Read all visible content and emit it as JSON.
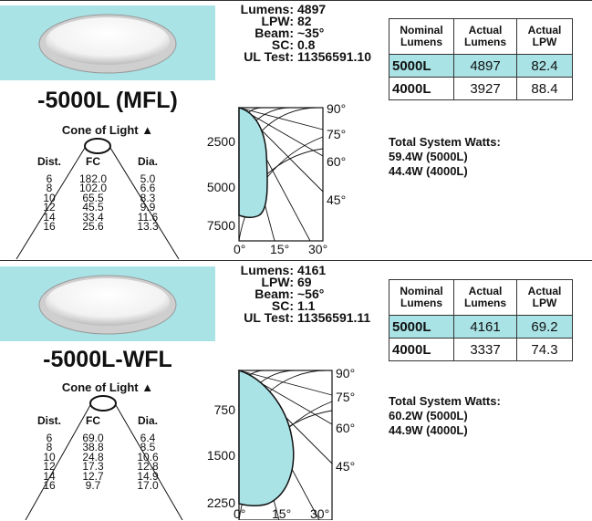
{
  "panels": [
    {
      "model": "-5000L (MFL)",
      "cone_title": "Cone of Light",
      "cone_headers": [
        "Dist.",
        "FC",
        "Dia."
      ],
      "cone_rows": [
        [
          "6",
          "182.0",
          "5.0"
        ],
        [
          "8",
          "102.0",
          "6.6"
        ],
        [
          "10",
          "65.5",
          "8.3"
        ],
        [
          "12",
          "45.5",
          "9.9"
        ],
        [
          "14",
          "33.4",
          "11.6"
        ],
        [
          "16",
          "25.6",
          "13.3"
        ]
      ],
      "specs": [
        {
          "label": "Lumens:",
          "value": "4897"
        },
        {
          "label": "LPW:",
          "value": "82"
        },
        {
          "label": "Beam:",
          "value": "~35°"
        },
        {
          "label": "SC:",
          "value": "0.8"
        },
        {
          "label": "UL Test:",
          "value": "11356591.10"
        }
      ],
      "polar": {
        "radial_labels": [
          "2500",
          "5000",
          "7500"
        ],
        "angle_labels_right": [
          "90°",
          "75°",
          "60°",
          "45°"
        ],
        "angle_labels_bottom": [
          "0°",
          "15°",
          "30°"
        ]
      },
      "table_headers": [
        "Nominal Lumens",
        "Actual Lumens",
        "Actual LPW"
      ],
      "table_rows": [
        [
          "5000L",
          "4897",
          "82.4"
        ],
        [
          "4000L",
          "3927",
          "88.4"
        ]
      ],
      "watts_title": "Total System Watts:",
      "watts_lines": [
        "59.4W (5000L)",
        "44.4W (4000L)"
      ]
    },
    {
      "model": "-5000L-WFL",
      "cone_title": "Cone of Light",
      "cone_headers": [
        "Dist.",
        "FC",
        "Dia."
      ],
      "cone_rows": [
        [
          "6",
          "69.0",
          "6.4"
        ],
        [
          "8",
          "38.8",
          "8.5"
        ],
        [
          "10",
          "24.8",
          "10.6"
        ],
        [
          "12",
          "17.3",
          "12.8"
        ],
        [
          "14",
          "12.7",
          "14.9"
        ],
        [
          "16",
          "9.7",
          "17.0"
        ]
      ],
      "specs": [
        {
          "label": "Lumens:",
          "value": "4161"
        },
        {
          "label": "LPW:",
          "value": "69"
        },
        {
          "label": "Beam:",
          "value": "~56°"
        },
        {
          "label": "SC:",
          "value": "1.1"
        },
        {
          "label": "UL Test:",
          "value": "11356591.11"
        }
      ],
      "polar": {
        "radial_labels": [
          "750",
          "1500",
          "2250"
        ],
        "angle_labels_right": [
          "90°",
          "75°",
          "60°",
          "45°"
        ],
        "angle_labels_bottom": [
          "0°",
          "15°",
          "30°"
        ]
      },
      "table_headers": [
        "Nominal Lumens",
        "Actual Lumens",
        "Actual LPW"
      ],
      "table_rows": [
        [
          "5000L",
          "4161",
          "69.2"
        ],
        [
          "4000L",
          "3337",
          "74.3"
        ]
      ],
      "watts_title": "Total System Watts:",
      "watts_lines": [
        "60.2W (5000L)",
        "44.9W (4000L)"
      ]
    }
  ],
  "colors": {
    "accent": "#a9e3e6",
    "rule": "#333333"
  },
  "icons": {
    "cone_marker": "triangle-up-icon",
    "fixture": "downlight-image"
  }
}
